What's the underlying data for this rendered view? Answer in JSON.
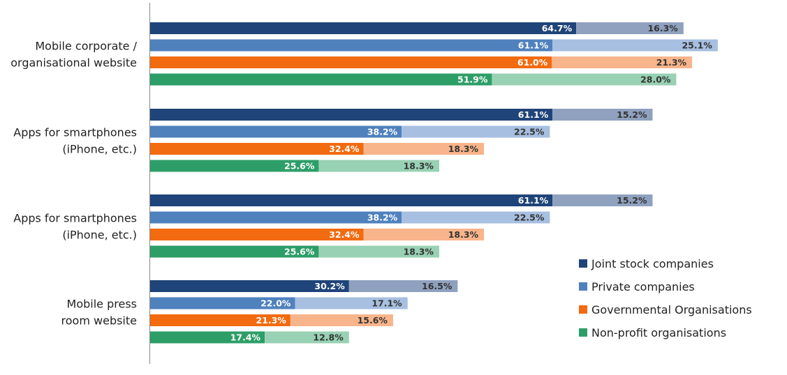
{
  "chart_data": {
    "type": "bar",
    "orientation": "horizontal",
    "stacked": true,
    "grid": false,
    "legend_position": "bottom-right",
    "categories": [
      [
        "Mobile corporate /",
        "organisational website"
      ],
      [
        "Apps for smartphones",
        "(iPhone, etc.)"
      ],
      [
        "Apps for smartphones",
        "(iPhone, etc.)"
      ],
      [
        "Mobile press",
        "room website"
      ]
    ],
    "series": [
      {
        "name": "Joint stock companies",
        "color_dark": "#1f4479",
        "color_light": "#8fa1bf",
        "segment1": [
          64.7,
          61.1,
          61.1,
          30.2
        ],
        "segment1_labels": [
          "64.7%",
          "61.1%",
          "61.1%",
          "30.2%"
        ],
        "segment2": [
          16.3,
          15.2,
          15.2,
          16.5
        ],
        "segment2_labels": [
          "16.3%",
          "15.2%",
          "15.2%",
          "16.5%"
        ]
      },
      {
        "name": "Private companies",
        "color_dark": "#4f81bd",
        "color_light": "#a7bfe0",
        "segment1": [
          61.1,
          38.2,
          38.2,
          22.0
        ],
        "segment1_labels": [
          "61.1%",
          "38.2%",
          "38.2%",
          "22.0%"
        ],
        "segment2": [
          25.1,
          22.5,
          22.5,
          17.1
        ],
        "segment2_labels": [
          "25.1%",
          "22.5%",
          "22.5%",
          "17.1%"
        ]
      },
      {
        "name": "Governmental Organisations",
        "color_dark": "#f26b10",
        "color_light": "#f8b48a",
        "segment1": [
          61.0,
          32.4,
          32.4,
          21.3
        ],
        "segment1_labels": [
          "61.0%",
          "32.4%",
          "32.4%",
          "21.3%"
        ],
        "segment2": [
          21.3,
          18.3,
          18.3,
          15.6
        ],
        "segment2_labels": [
          "21.3%",
          "18.3%",
          "18.3%",
          "15.6%"
        ]
      },
      {
        "name": "Non-profit organisations",
        "color_dark": "#2e9e68",
        "color_light": "#98d1b3",
        "segment1": [
          51.9,
          25.6,
          25.6,
          17.4
        ],
        "segment1_labels": [
          "51.9%",
          "25.6%",
          "25.6%",
          "17.4%"
        ],
        "segment2": [
          28.0,
          18.3,
          18.3,
          12.8
        ],
        "segment2_labels": [
          "28.0%",
          "18.3%",
          "18.3%",
          "12.8%"
        ]
      }
    ],
    "value_label_colors": {
      "on_dark": "#ffffff",
      "on_light": "#333333"
    },
    "axis_line_color": "#888888",
    "title": "",
    "xlabel": "",
    "ylabel": ""
  }
}
